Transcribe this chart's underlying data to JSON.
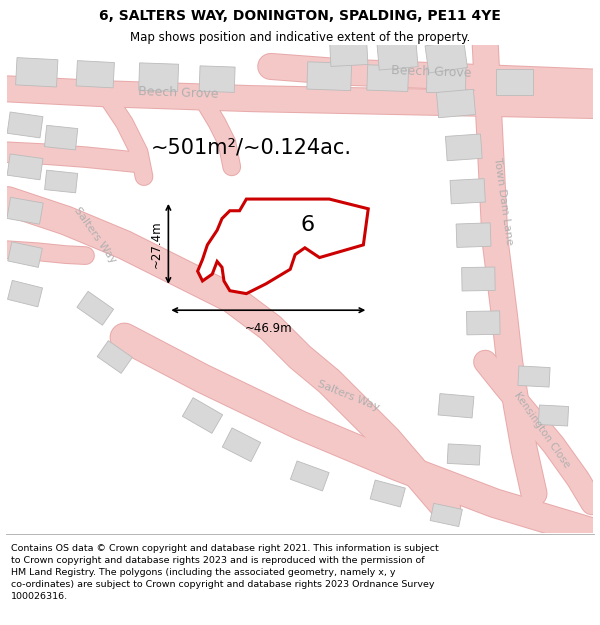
{
  "title": "6, SALTERS WAY, DONINGTON, SPALDING, PE11 4YE",
  "subtitle": "Map shows position and indicative extent of the property.",
  "footer": "Contains OS data © Crown copyright and database right 2021. This information is subject\nto Crown copyright and database rights 2023 and is reproduced with the permission of\nHM Land Registry. The polygons (including the associated geometry, namely x, y\nco-ordinates) are subject to Crown copyright and database rights 2023 Ordnance Survey\n100026316.",
  "map_bg": "#f7f6f6",
  "road_fill": "#f5c8c8",
  "road_edge": "#e8aaaa",
  "building_color": "#d8d8d8",
  "building_edge": "#bbbbbb",
  "plot_edge": "#cc0000",
  "plot_fill": "#ffffff",
  "area_text": "~501m²/~0.124ac.",
  "width_label": "~46.9m",
  "height_label": "~27.4m",
  "plot_number": "6",
  "figsize": [
    6.0,
    6.25
  ],
  "dpi": 100,
  "title_fs": 10,
  "subtitle_fs": 8.5,
  "footer_fs": 6.8
}
